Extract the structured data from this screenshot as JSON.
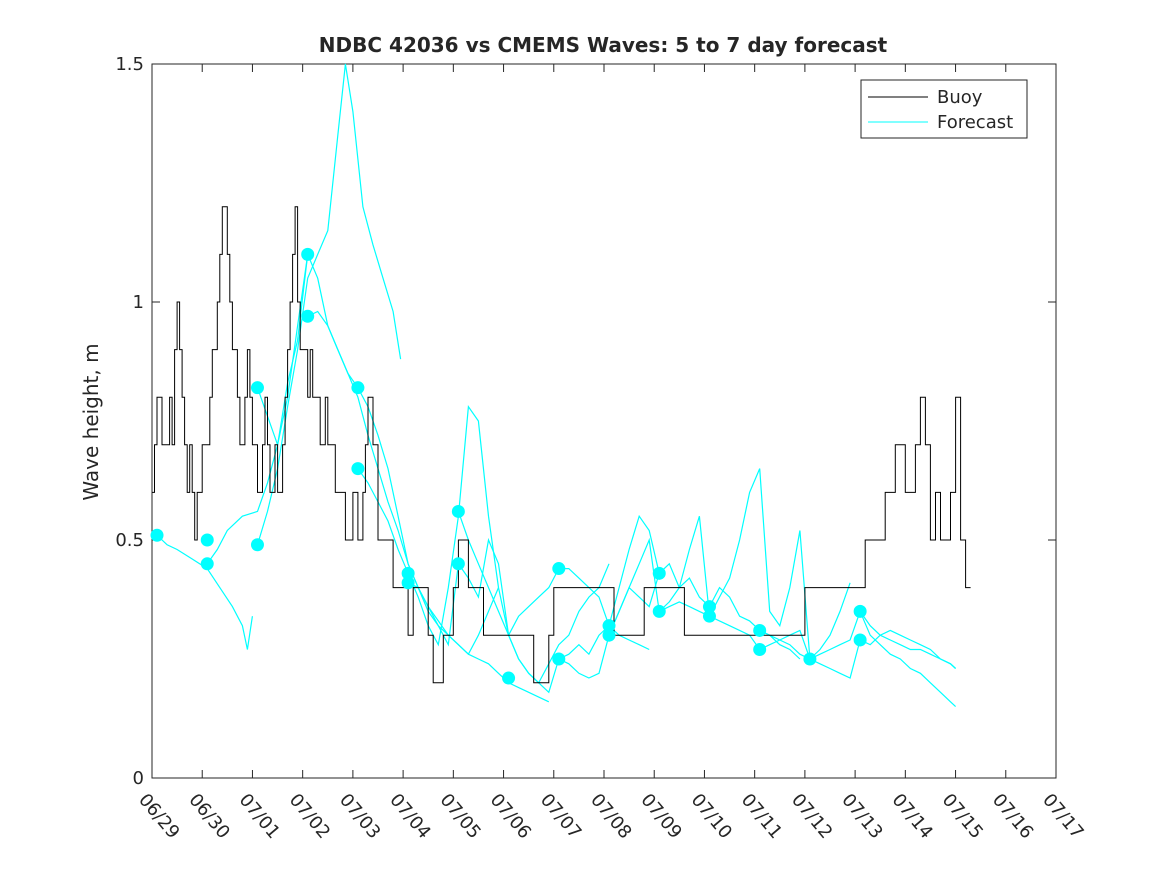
{
  "chart_data": {
    "type": "line",
    "title": "NDBC 42036 vs CMEMS Waves: 5 to 7 day forecast",
    "xlabel": "",
    "ylabel": "Wave height, m",
    "xlim": [
      "06/29",
      "07/17"
    ],
    "ylim": [
      0,
      1.5
    ],
    "x_tick_labels": [
      "06/29",
      "06/30",
      "07/01",
      "07/02",
      "07/03",
      "07/04",
      "07/05",
      "07/06",
      "07/07",
      "07/08",
      "07/09",
      "07/10",
      "07/11",
      "07/12",
      "07/13",
      "07/14",
      "07/15",
      "07/16",
      "07/17"
    ],
    "y_tick_labels": [
      "0",
      "0.5",
      "1",
      "1.5"
    ],
    "y_ticks": [
      0,
      0.5,
      1,
      1.5
    ],
    "x_unit": "days since 06/29 00:00",
    "grid": false,
    "legend_position": "top-right",
    "colors": {
      "buoy": "#000000",
      "forecast": "#00ffff"
    },
    "series": [
      {
        "name": "Buoy",
        "color": "#000000",
        "x": [
          0.0,
          0.05,
          0.1,
          0.15,
          0.2,
          0.3,
          0.35,
          0.4,
          0.45,
          0.5,
          0.55,
          0.6,
          0.65,
          0.7,
          0.75,
          0.8,
          0.85,
          0.9,
          0.95,
          1.0,
          1.05,
          1.1,
          1.15,
          1.2,
          1.3,
          1.35,
          1.4,
          1.5,
          1.55,
          1.6,
          1.65,
          1.7,
          1.75,
          1.8,
          1.85,
          1.9,
          1.95,
          2.0,
          2.05,
          2.1,
          2.15,
          2.2,
          2.25,
          2.3,
          2.35,
          2.4,
          2.45,
          2.5,
          2.55,
          2.6,
          2.65,
          2.7,
          2.75,
          2.8,
          2.85,
          2.9,
          2.95,
          3.0,
          3.05,
          3.1,
          3.15,
          3.2,
          3.25,
          3.3,
          3.35,
          3.4,
          3.45,
          3.5,
          3.55,
          3.6,
          3.65,
          3.7,
          3.75,
          3.8,
          3.85,
          3.9,
          3.95,
          4.0,
          4.05,
          4.1,
          4.15,
          4.2,
          4.25,
          4.3,
          4.35,
          4.4,
          4.5,
          4.6,
          4.7,
          4.8,
          4.9,
          5.0,
          5.1,
          5.2,
          5.3,
          5.4,
          5.5,
          5.6,
          5.7,
          5.8,
          5.9,
          6.0,
          6.1,
          6.2,
          6.3,
          6.4,
          6.5,
          6.6,
          6.7,
          6.8,
          6.9,
          7.0,
          7.1,
          7.2,
          7.3,
          7.4,
          7.5,
          7.6,
          7.7,
          7.8,
          7.9,
          8.0,
          8.2,
          8.4,
          8.6,
          8.8,
          9.0,
          9.2,
          9.4,
          9.6,
          9.8,
          10.0,
          10.2,
          10.4,
          10.6,
          10.8,
          11.0,
          11.2,
          11.4,
          11.6,
          11.8,
          12.0,
          12.5,
          13.0,
          13.5,
          14.0,
          14.2,
          14.4,
          14.6,
          14.8,
          15.0,
          15.1,
          15.2,
          15.3,
          15.4,
          15.5,
          15.6,
          15.7,
          15.8,
          15.9,
          16.0,
          16.1,
          16.2,
          16.3
        ],
        "y": [
          0.6,
          0.7,
          0.8,
          0.8,
          0.7,
          0.7,
          0.8,
          0.7,
          0.9,
          1.0,
          0.9,
          0.8,
          0.7,
          0.6,
          0.7,
          0.6,
          0.5,
          0.6,
          0.6,
          0.7,
          0.7,
          0.7,
          0.8,
          0.9,
          1.0,
          1.1,
          1.2,
          1.1,
          1.0,
          0.9,
          0.9,
          0.8,
          0.7,
          0.7,
          0.8,
          0.9,
          0.8,
          0.7,
          0.7,
          0.6,
          0.6,
          0.7,
          0.8,
          0.7,
          0.6,
          0.6,
          0.7,
          0.6,
          0.6,
          0.7,
          0.8,
          0.9,
          1.0,
          1.1,
          1.2,
          1.0,
          0.9,
          0.9,
          0.9,
          0.8,
          0.9,
          0.8,
          0.8,
          0.8,
          0.7,
          0.7,
          0.8,
          0.7,
          0.7,
          0.7,
          0.6,
          0.6,
          0.6,
          0.6,
          0.5,
          0.5,
          0.5,
          0.6,
          0.6,
          0.5,
          0.5,
          0.6,
          0.7,
          0.8,
          0.8,
          0.7,
          0.5,
          0.5,
          0.5,
          0.4,
          0.4,
          0.4,
          0.3,
          0.4,
          0.4,
          0.4,
          0.3,
          0.2,
          0.2,
          0.3,
          0.3,
          0.4,
          0.5,
          0.5,
          0.4,
          0.4,
          0.4,
          0.3,
          0.3,
          0.3,
          0.3,
          0.3,
          0.3,
          0.3,
          0.3,
          0.3,
          0.3,
          0.2,
          0.2,
          0.2,
          0.3,
          0.4,
          0.4,
          0.4,
          0.4,
          0.4,
          0.4,
          0.3,
          0.3,
          0.3,
          0.4,
          0.4,
          0.4,
          0.4,
          0.3,
          0.3,
          0.3,
          0.3,
          0.3,
          0.3,
          0.3,
          0.3,
          0.3,
          0.4,
          0.4,
          0.4,
          0.5,
          0.5,
          0.6,
          0.7,
          0.6,
          0.6,
          0.7,
          0.8,
          0.7,
          0.5,
          0.6,
          0.5,
          0.5,
          0.6,
          0.8,
          0.5,
          0.4,
          0.4
        ]
      },
      {
        "name": "Forecast",
        "color": "#00ffff",
        "segments": [
          {
            "x": [
              0.1,
              0.3,
              0.5,
              0.8,
              1.1,
              1.35,
              1.6,
              1.8,
              1.9,
              2.0
            ],
            "y": [
              0.51,
              0.49,
              0.48,
              0.46,
              0.44,
              0.4,
              0.36,
              0.32,
              0.27,
              0.34
            ]
          },
          {
            "x": [
              1.1,
              1.3,
              1.5,
              1.8,
              2.1,
              2.3,
              2.5,
              2.7,
              2.9,
              3.1
            ],
            "y": [
              0.45,
              0.48,
              0.52,
              0.55,
              0.56,
              0.62,
              0.7,
              0.83,
              0.92,
              1.1
            ]
          },
          {
            "x": [
              2.1,
              2.3,
              2.5,
              2.7,
              2.9,
              3.1,
              3.3,
              3.5,
              3.7,
              3.85,
              4.0,
              4.2,
              4.4,
              4.6,
              4.8,
              4.95
            ],
            "y": [
              0.49,
              0.56,
              0.65,
              0.78,
              0.9,
              1.05,
              1.1,
              1.15,
              1.35,
              1.5,
              1.4,
              1.2,
              1.12,
              1.05,
              0.98,
              0.88
            ]
          },
          {
            "x": [
              2.1,
              2.3,
              2.5,
              2.7,
              2.9,
              3.1,
              3.3,
              3.5,
              3.7,
              3.9,
              4.1,
              4.3,
              4.5,
              4.7,
              4.9,
              5.1,
              5.3,
              5.5,
              5.7,
              5.9,
              6.1,
              6.3,
              6.5,
              6.7,
              6.9
            ],
            "y": [
              0.82,
              0.76,
              0.7,
              0.8,
              0.95,
              1.1,
              1.05,
              0.95,
              0.9,
              0.85,
              0.82,
              0.78,
              0.72,
              0.65,
              0.55,
              0.45,
              0.4,
              0.35,
              0.32,
              0.3,
              0.28,
              0.26,
              0.3,
              0.35,
              0.4
            ]
          },
          {
            "x": [
              3.1,
              3.3,
              3.5,
              3.7,
              3.9,
              4.1,
              4.3,
              4.5,
              4.7,
              4.9,
              5.1,
              5.3,
              5.5,
              5.7,
              5.9,
              6.1,
              6.3,
              6.5,
              6.7,
              6.9,
              7.1,
              7.3,
              7.5,
              7.7,
              7.9
            ],
            "y": [
              0.97,
              0.98,
              0.95,
              0.9,
              0.85,
              0.8,
              0.72,
              0.65,
              0.58,
              0.52,
              0.45,
              0.4,
              0.36,
              0.33,
              0.3,
              0.28,
              0.26,
              0.25,
              0.24,
              0.22,
              0.2,
              0.19,
              0.18,
              0.17,
              0.16
            ]
          },
          {
            "x": [
              4.1,
              4.3,
              4.5,
              4.7,
              4.9,
              5.1,
              5.3,
              5.5,
              5.7,
              5.9,
              6.1,
              6.3,
              6.5,
              6.7,
              6.9,
              7.1,
              7.3,
              7.5,
              7.7,
              7.9,
              8.1,
              8.3,
              8.5,
              8.7,
              8.9,
              9.1
            ],
            "y": [
              0.65,
              0.62,
              0.58,
              0.54,
              0.48,
              0.43,
              0.38,
              0.32,
              0.28,
              0.4,
              0.55,
              0.78,
              0.75,
              0.55,
              0.4,
              0.3,
              0.25,
              0.22,
              0.2,
              0.24,
              0.28,
              0.3,
              0.35,
              0.38,
              0.4,
              0.45
            ]
          },
          {
            "x": [
              5.1,
              5.3,
              5.5,
              5.7,
              5.9,
              6.1,
              6.3,
              6.5,
              6.7,
              6.9,
              7.1,
              7.3,
              7.5,
              7.7,
              7.9,
              8.1,
              8.3,
              8.5,
              8.7,
              8.9,
              9.1,
              9.3,
              9.5,
              9.7,
              9.9,
              10.1
            ],
            "y": [
              0.41,
              0.4,
              0.36,
              0.32,
              0.28,
              0.45,
              0.42,
              0.38,
              0.5,
              0.45,
              0.3,
              0.25,
              0.22,
              0.2,
              0.18,
              0.25,
              0.24,
              0.22,
              0.21,
              0.22,
              0.3,
              0.35,
              0.4,
              0.38,
              0.36,
              0.43
            ]
          },
          {
            "x": [
              6.1,
              6.3,
              6.5,
              6.7,
              6.9,
              7.1,
              7.3,
              7.5,
              7.7,
              7.9,
              8.1,
              8.3,
              8.5,
              8.7,
              8.9,
              9.1,
              9.3,
              9.5,
              9.7,
              9.9
            ],
            "y": [
              0.56,
              0.5,
              0.45,
              0.4,
              0.35,
              0.3,
              0.34,
              0.36,
              0.38,
              0.4,
              0.44,
              0.44,
              0.42,
              0.4,
              0.38,
              0.32,
              0.3,
              0.29,
              0.28,
              0.27
            ]
          },
          {
            "x": [
              8.1,
              8.3,
              8.5,
              8.7,
              8.9,
              9.1,
              9.3,
              9.5,
              9.7,
              9.9,
              10.1,
              10.3,
              10.5,
              10.7,
              10.9,
              11.1,
              11.3,
              11.5,
              11.7,
              11.9,
              12.1,
              12.3,
              12.5,
              12.7,
              12.9
            ],
            "y": [
              0.25,
              0.26,
              0.28,
              0.26,
              0.3,
              0.32,
              0.4,
              0.48,
              0.55,
              0.52,
              0.43,
              0.45,
              0.4,
              0.42,
              0.38,
              0.36,
              0.4,
              0.38,
              0.34,
              0.33,
              0.31,
              0.3,
              0.28,
              0.27,
              0.25
            ]
          },
          {
            "x": [
              9.1,
              9.3,
              9.5,
              9.7,
              9.9,
              10.1,
              10.3,
              10.5,
              10.7,
              10.9,
              11.1,
              11.3,
              11.5,
              11.7,
              11.9,
              12.1,
              12.3,
              12.5,
              12.7,
              12.9,
              13.1,
              13.3,
              13.5,
              13.7,
              13.9
            ],
            "y": [
              0.3,
              0.35,
              0.4,
              0.45,
              0.5,
              0.35,
              0.37,
              0.4,
              0.48,
              0.55,
              0.34,
              0.38,
              0.42,
              0.5,
              0.6,
              0.65,
              0.35,
              0.32,
              0.4,
              0.52,
              0.25,
              0.27,
              0.3,
              0.35,
              0.41
            ]
          },
          {
            "x": [
              10.1,
              10.3,
              10.5,
              10.7,
              10.9,
              11.1,
              11.3,
              11.5,
              11.7,
              11.9,
              12.1,
              12.3,
              12.5,
              12.7,
              12.9,
              13.1,
              13.3,
              13.5,
              13.7,
              13.9,
              14.1,
              14.3,
              14.5,
              14.7,
              14.9,
              15.1,
              15.3,
              15.5,
              15.7,
              15.9,
              16.0
            ],
            "y": [
              0.35,
              0.36,
              0.37,
              0.36,
              0.35,
              0.34,
              0.33,
              0.32,
              0.31,
              0.3,
              0.27,
              0.28,
              0.29,
              0.3,
              0.31,
              0.25,
              0.26,
              0.27,
              0.28,
              0.29,
              0.35,
              0.3,
              0.28,
              0.26,
              0.25,
              0.23,
              0.22,
              0.2,
              0.18,
              0.16,
              0.15
            ]
          },
          {
            "x": [
              12.1,
              12.3,
              12.5,
              12.7,
              12.9,
              13.1,
              13.3,
              13.5,
              13.7,
              13.9,
              14.1,
              14.3,
              14.5,
              14.7,
              14.9,
              15.1,
              15.3,
              15.5,
              15.7,
              15.9,
              16.0
            ],
            "y": [
              0.31,
              0.3,
              0.29,
              0.28,
              0.26,
              0.25,
              0.24,
              0.23,
              0.22,
              0.21,
              0.29,
              0.28,
              0.3,
              0.31,
              0.3,
              0.29,
              0.28,
              0.27,
              0.25,
              0.24,
              0.23
            ]
          },
          {
            "x": [
              14.1,
              14.3,
              14.5,
              14.7,
              14.9,
              15.1,
              15.3,
              15.5,
              15.7,
              15.9,
              16.0
            ],
            "y": [
              0.35,
              0.32,
              0.3,
              0.29,
              0.28,
              0.27,
              0.27,
              0.26,
              0.25,
              0.24,
              0.23
            ]
          }
        ],
        "markers": {
          "x": [
            0.1,
            1.1,
            2.1,
            2.1,
            3.1,
            3.1,
            4.1,
            4.1,
            5.1,
            5.1,
            6.1,
            6.1,
            7.1,
            8.1,
            8.1,
            9.1,
            9.1,
            10.1,
            10.1,
            11.1,
            11.1,
            12.1,
            12.1,
            13.1,
            14.1,
            14.1,
            1.1
          ],
          "y": [
            0.51,
            0.45,
            0.49,
            0.82,
            1.1,
            0.97,
            0.82,
            0.65,
            0.43,
            0.41,
            0.56,
            0.45,
            0.21,
            0.44,
            0.25,
            0.32,
            0.3,
            0.43,
            0.35,
            0.36,
            0.34,
            0.31,
            0.27,
            0.25,
            0.35,
            0.29,
            0.5
          ]
        }
      }
    ]
  }
}
